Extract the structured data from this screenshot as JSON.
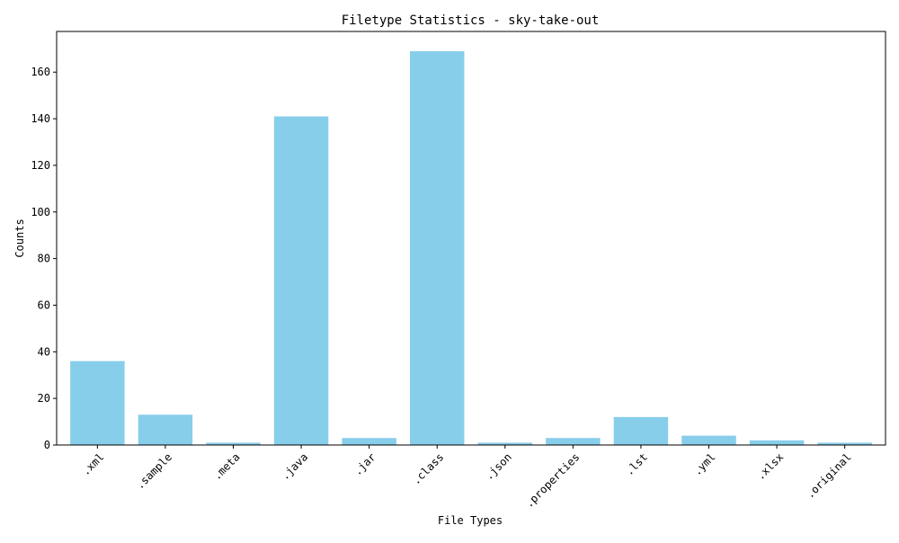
{
  "chart_data": {
    "type": "bar",
    "title": "Filetype Statistics - sky-take-out",
    "xlabel": "File Types",
    "ylabel": "Counts",
    "categories": [
      ".xml",
      ".sample",
      ".meta",
      ".java",
      ".jar",
      ".class",
      ".json",
      ".properties",
      ".lst",
      ".yml",
      ".xlsx",
      ".original"
    ],
    "values": [
      36,
      13,
      1,
      141,
      3,
      169,
      1,
      3,
      12,
      4,
      2,
      1
    ],
    "ylim": [
      0,
      177.45
    ],
    "yticks": [
      0,
      20,
      40,
      60,
      80,
      100,
      120,
      140,
      160
    ],
    "bar_color": "#87CEEB",
    "grid": false,
    "legend": "none"
  }
}
